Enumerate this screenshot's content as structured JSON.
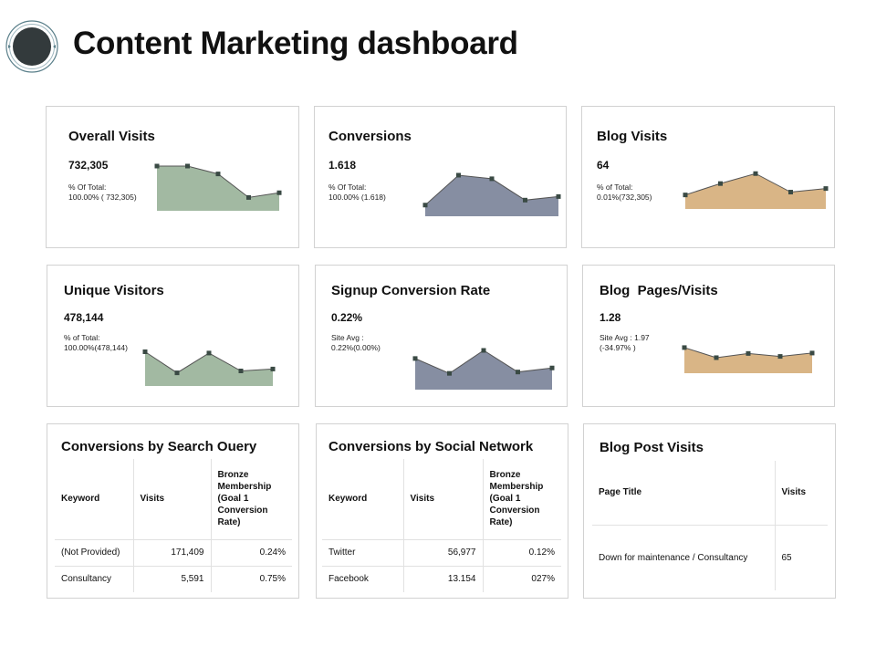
{
  "header": {
    "title": "Content Marketing dashboard"
  },
  "cards": {
    "overall_visits": {
      "title": "Overall Visits",
      "value": "732,305",
      "sub1": "% Of Total:",
      "sub2": "100.00% ( 732,305)",
      "series": [
        5,
        5,
        4,
        1,
        1.6
      ],
      "color": "#a2b9a2"
    },
    "conversions": {
      "title": "Conversions",
      "value": "1.618",
      "sub1": "% Of Total:",
      "sub2": "100.00% (1.618)",
      "series": [
        0.8,
        5,
        4.5,
        1.5,
        2
      ],
      "color": "#868ea2"
    },
    "blog_visits": {
      "title": "Blog Visits",
      "value": "64",
      "sub1": "% of Total:",
      "sub2": "0.01%(732,305)",
      "series": [
        1.2,
        2.8,
        4.2,
        1.6,
        2.1
      ],
      "color": "#d9b586"
    },
    "unique_visitors": {
      "title": "Unique Visitors",
      "value": "478,144",
      "sub1": "% of Total:",
      "sub2": "100.00%(478,144)",
      "series": [
        4.5,
        1.2,
        4.3,
        1.5,
        1.8
      ],
      "color": "#a2b9a2"
    },
    "signup_conversion_rate": {
      "title": "Signup Conversion Rate",
      "value": "0.22%",
      "sub1": "Site Avg :",
      "sub2": "0.22%(0.00%)",
      "series": [
        3.8,
        1.6,
        5,
        1.8,
        2.4
      ],
      "color": "#868ea2"
    },
    "blog_pages_visits": {
      "title": "Blog  Pages/Visits",
      "value": "1.28",
      "sub1": "Site Avg : 1.97",
      "sub2": "(-34.97% )",
      "series": [
        4.8,
        2.4,
        3.4,
        2.7,
        3.5
      ],
      "color": "#d9b586"
    }
  },
  "search_query": {
    "title": "Conversions by Search Ouery",
    "headers": [
      "Keyword",
      "Visits",
      "Bronze Membership (Goal 1 Conversion Rate)"
    ],
    "rows": [
      [
        "(Not Provided)",
        "171,409",
        "0.24%"
      ],
      [
        "Consultancy",
        "5,591",
        "0.75%"
      ]
    ]
  },
  "social_network": {
    "title": "Conversions by Social Network",
    "headers": [
      "Keyword",
      "Visits",
      "Bronze Membership (Goal 1 Conversion Rate)"
    ],
    "rows": [
      [
        "Twitter",
        "56,977",
        "0.12%"
      ],
      [
        "Facebook",
        "13.154",
        "027%"
      ]
    ]
  },
  "blog_post_visits": {
    "title": "Blog Post Visits",
    "headers": [
      "Page Title",
      "Visits"
    ],
    "rows": [
      [
        "Down for maintenance / Consultancy",
        "65"
      ]
    ]
  }
}
